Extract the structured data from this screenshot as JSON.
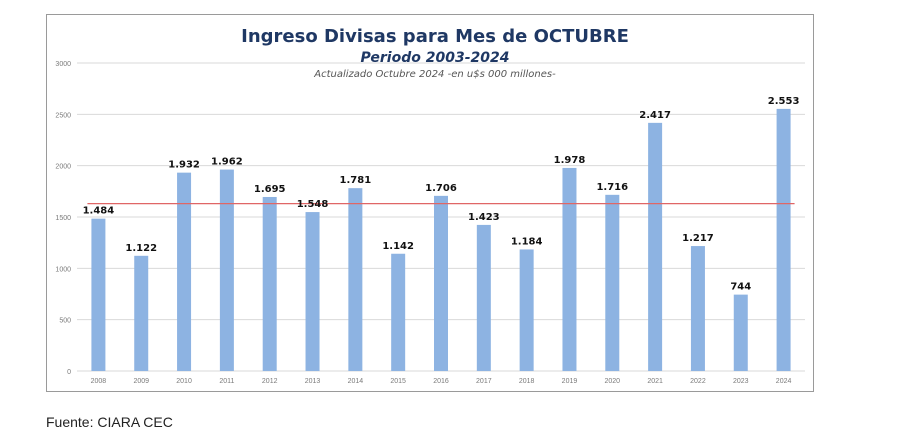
{
  "chart_data": {
    "type": "bar",
    "title": "Ingreso Divisas para Mes de OCTUBRE",
    "subtitle": "Periodo 2003-2024",
    "note": "Actualizado Octubre 2024 -en u$s 000 millones-",
    "categories": [
      "2008",
      "2009",
      "2010",
      "2011",
      "2012",
      "2013",
      "2014",
      "2015",
      "2016",
      "2017",
      "2018",
      "2019",
      "2020",
      "2021",
      "2022",
      "2023",
      "2024"
    ],
    "values": [
      1484,
      1122,
      1932,
      1962,
      1695,
      1548,
      1781,
      1142,
      1706,
      1423,
      1184,
      1978,
      1716,
      2417,
      1217,
      744,
      2553
    ],
    "value_labels": [
      "1.484",
      "1.122",
      "1.932",
      "1.962",
      "1.695",
      "1.548",
      "1.781",
      "1.142",
      "1.706",
      "1.423",
      "1.184",
      "1.978",
      "1.716",
      "2.417",
      "1.217",
      "744",
      "2.553"
    ],
    "ylim": [
      0,
      3000
    ],
    "yticks": [
      0,
      500,
      1000,
      1500,
      2000,
      2500,
      3000
    ],
    "reference_line": 1630,
    "grid": true,
    "colors": {
      "bar": "#8db3e2",
      "reference_line": "#e06666",
      "grid": "#d9d9d9"
    }
  },
  "source": "Fuente: CIARA CEC"
}
